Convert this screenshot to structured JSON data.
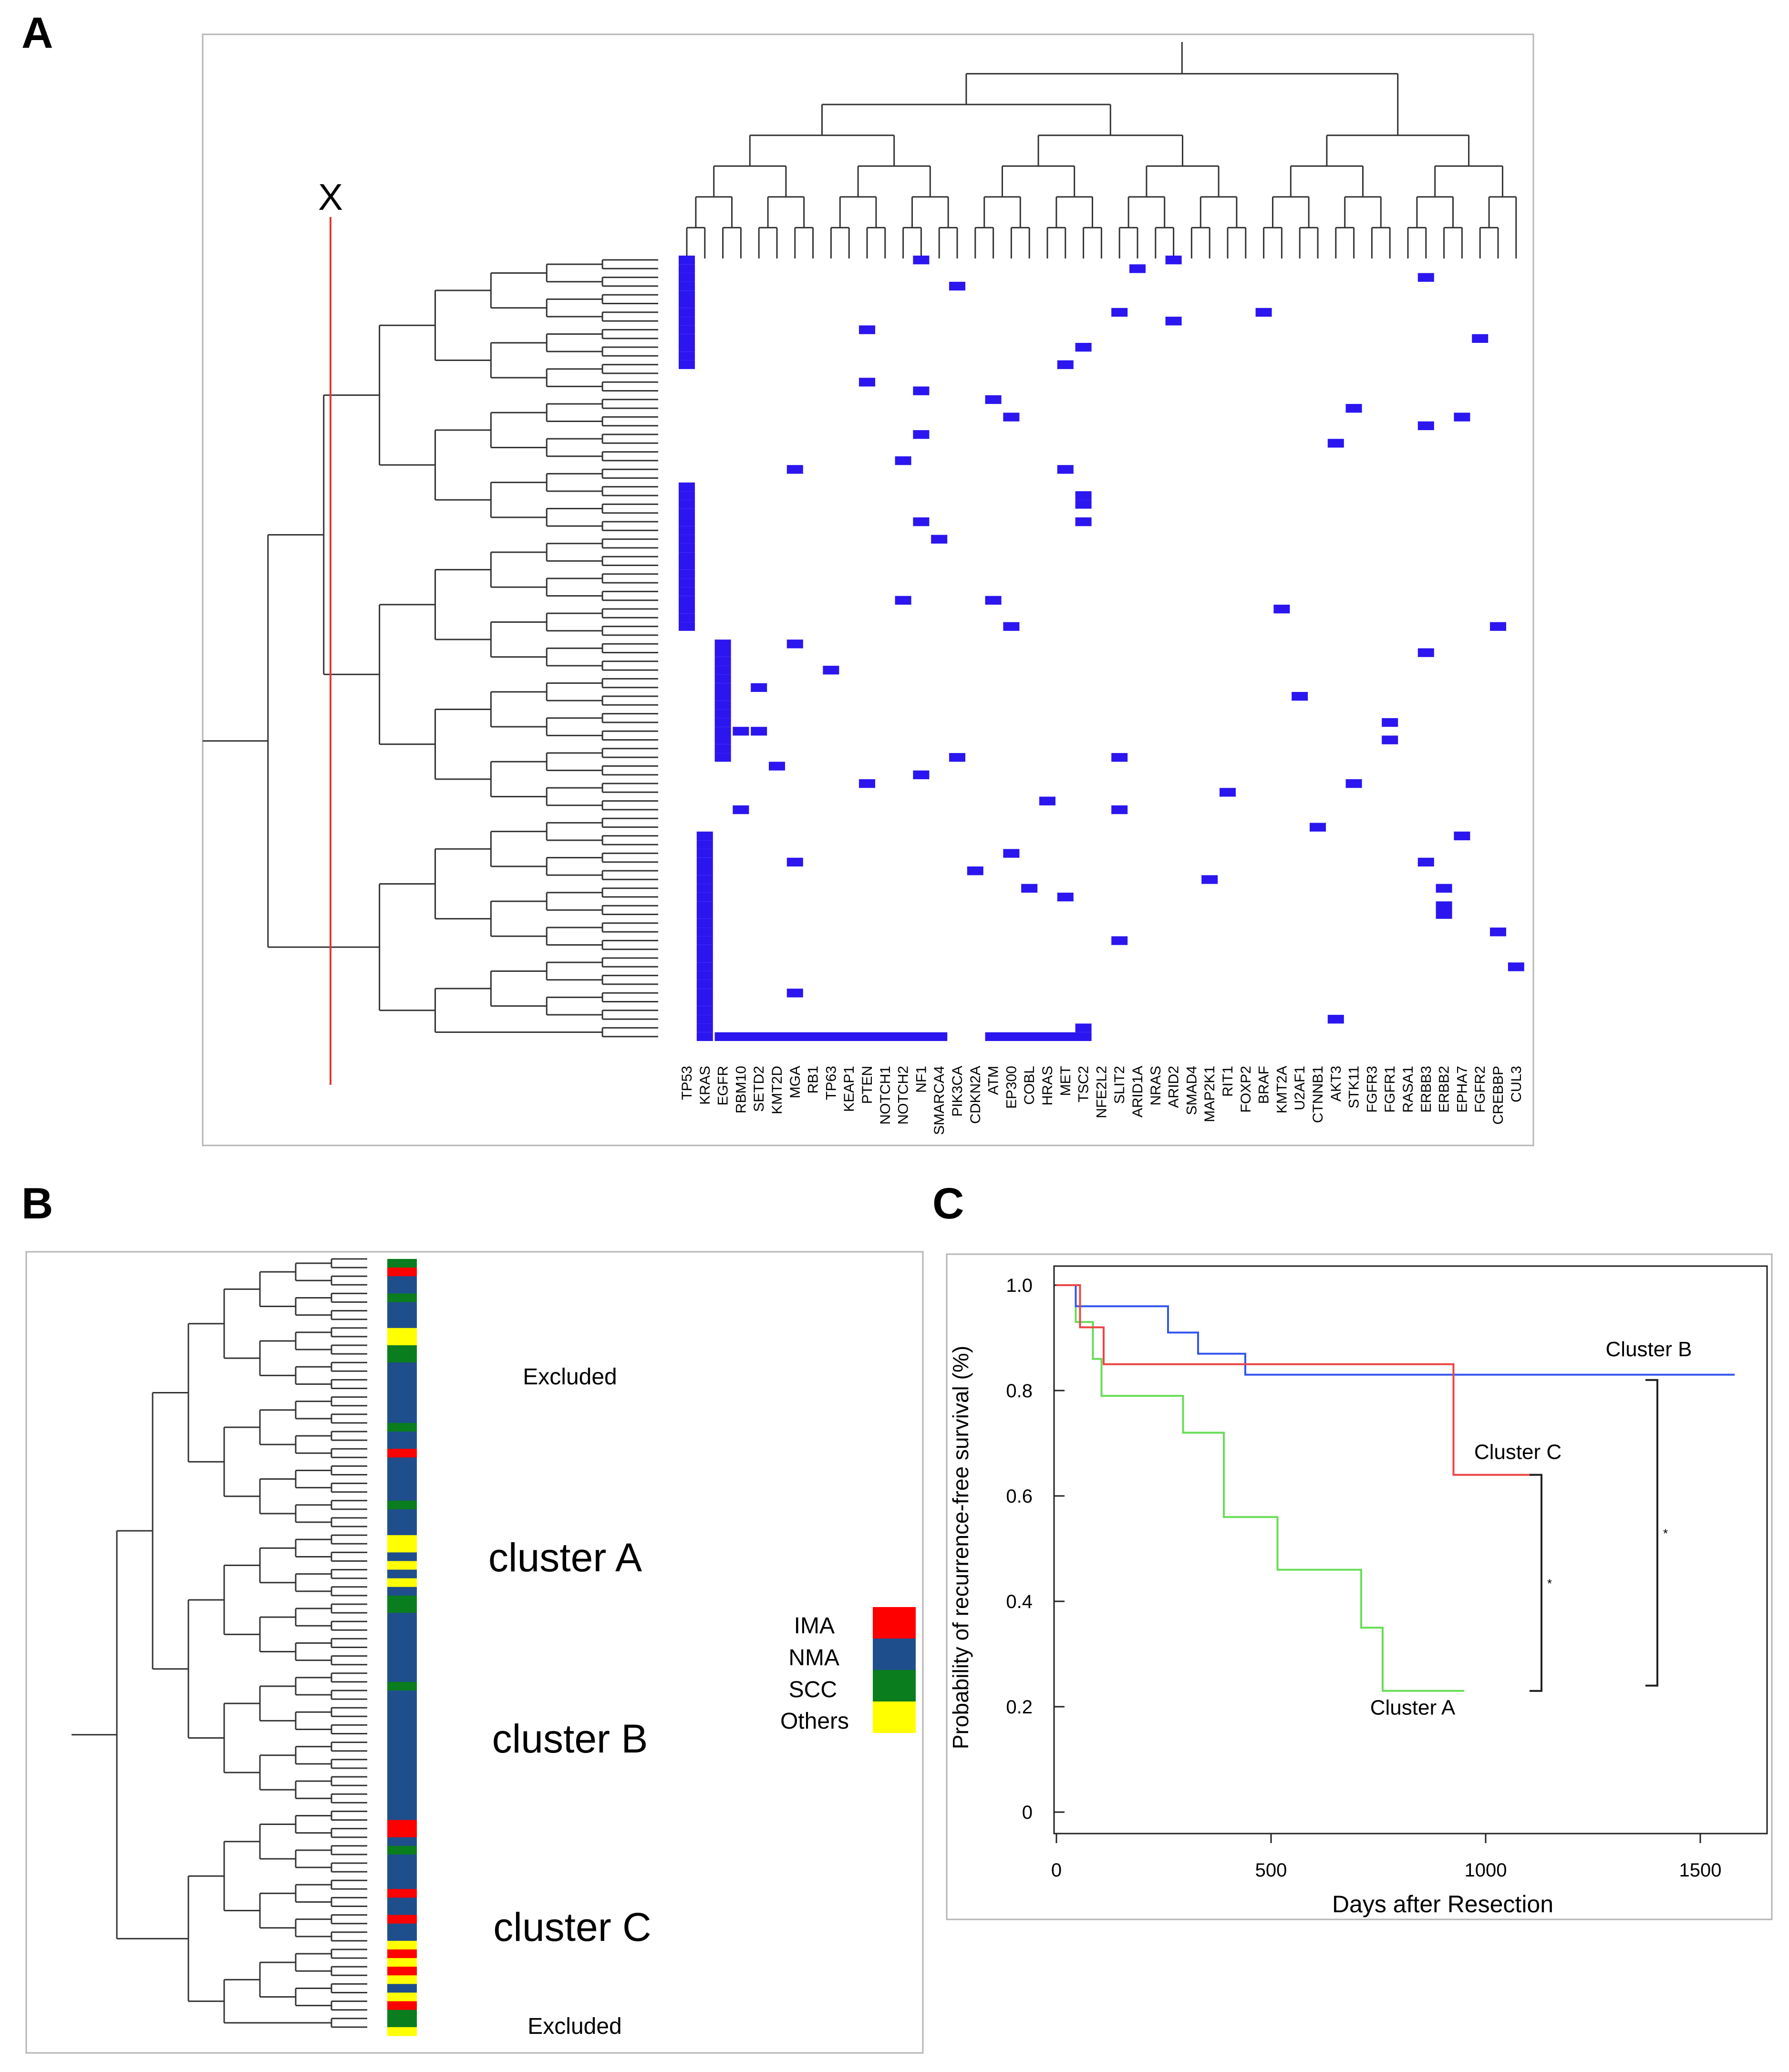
{
  "panels": {
    "a": {
      "letter": "A",
      "cut_label": "X",
      "genes": [
        "TP53",
        "KRAS",
        "EGFR",
        "RBM10",
        "SETD2",
        "KMT2D",
        "MGA",
        "RB1",
        "TP63",
        "KEAP1",
        "PTEN",
        "NOTCH1",
        "NOTCH2",
        "NF1",
        "SMARCA4",
        "PIK3CA",
        "CDKN2A",
        "ATM",
        "EP300",
        "COBL",
        "HRAS",
        "MET",
        "TSC2",
        "NFE2L2",
        "SLIT2",
        "ARID1A",
        "NRAS",
        "ARID2",
        "SMAD4",
        "MAP2K1",
        "RIT1",
        "FOXP2",
        "BRAF",
        "KMT2A",
        "U2AF1",
        "CTNNB1",
        "AKT3",
        "STK11",
        "FGFR3",
        "FGFR1",
        "RASA1",
        "ERBB3",
        "ERBB2",
        "EPHA7",
        "FGFR2",
        "CREBBP",
        "CUL3"
      ],
      "mutation_color": "#2b16f0",
      "cut_line_color": "#e23b2f"
    },
    "b": {
      "letter": "B",
      "labels": {
        "excluded_top": "Excluded",
        "cluster_a": "cluster A",
        "cluster_b": "cluster B",
        "cluster_c": "cluster C",
        "excluded_bottom": "Excluded"
      },
      "legend": [
        {
          "name": "IMA",
          "color": "#ff0000"
        },
        {
          "name": "NMA",
          "color": "#1f4e8c"
        },
        {
          "name": "SCC",
          "color": "#0a7d1e"
        },
        {
          "name": "Others",
          "color": "#ffff00"
        }
      ]
    },
    "c": {
      "letter": "C"
    }
  },
  "chart_data": {
    "type": "line",
    "title": "",
    "xlabel": "Days after Resection",
    "ylabel": "Probability of recurrence-free survival (%)",
    "xlim": [
      0,
      1650
    ],
    "ylim": [
      0,
      1.0
    ],
    "x_ticks": [
      0,
      500,
      1000,
      1500
    ],
    "y_ticks": [
      0,
      0.2,
      0.4,
      0.6,
      0.8,
      1.0
    ],
    "y_tick_labels": [
      "0",
      "0.2",
      "0.4",
      "0.6",
      "0.8",
      "1.0"
    ],
    "grid": false,
    "series": [
      {
        "name": "Cluster A",
        "color": "#66dd55",
        "points": [
          [
            0,
            1.0
          ],
          [
            45,
            1.0
          ],
          [
            45,
            0.93
          ],
          [
            85,
            0.93
          ],
          [
            85,
            0.86
          ],
          [
            105,
            0.86
          ],
          [
            105,
            0.79
          ],
          [
            295,
            0.79
          ],
          [
            295,
            0.72
          ],
          [
            390,
            0.72
          ],
          [
            390,
            0.56
          ],
          [
            515,
            0.56
          ],
          [
            515,
            0.46
          ],
          [
            710,
            0.46
          ],
          [
            710,
            0.35
          ],
          [
            760,
            0.35
          ],
          [
            760,
            0.23
          ],
          [
            950,
            0.23
          ]
        ]
      },
      {
        "name": "Cluster B",
        "color": "#3355ee",
        "points": [
          [
            0,
            1.0
          ],
          [
            45,
            1.0
          ],
          [
            45,
            0.96
          ],
          [
            260,
            0.96
          ],
          [
            260,
            0.91
          ],
          [
            330,
            0.91
          ],
          [
            330,
            0.87
          ],
          [
            440,
            0.87
          ],
          [
            440,
            0.83
          ],
          [
            1580,
            0.83
          ]
        ]
      },
      {
        "name": "Cluster C",
        "color": "#ee4444",
        "points": [
          [
            0,
            1.0
          ],
          [
            55,
            1.0
          ],
          [
            55,
            0.92
          ],
          [
            110,
            0.92
          ],
          [
            110,
            0.85
          ],
          [
            925,
            0.85
          ],
          [
            925,
            0.64
          ],
          [
            1115,
            0.64
          ]
        ]
      }
    ],
    "annotations": [
      {
        "text": "Cluster B",
        "x": 1380,
        "y": 0.865
      },
      {
        "text": "Cluster C",
        "x": 1075,
        "y": 0.67
      },
      {
        "text": "Cluster A",
        "x": 830,
        "y": 0.185
      }
    ],
    "brackets": [
      {
        "x": 1130,
        "y_top": 0.64,
        "y_bottom": 0.23,
        "mark": "*"
      },
      {
        "x": 1400,
        "y_top": 0.82,
        "y_bottom": 0.24,
        "mark": "*"
      }
    ]
  }
}
